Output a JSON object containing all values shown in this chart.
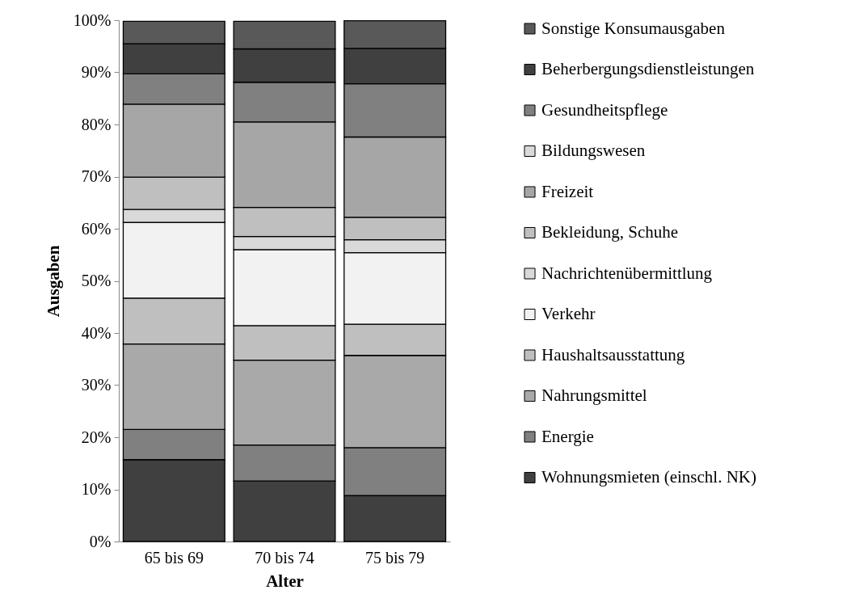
{
  "chart_data": {
    "type": "bar",
    "stacked": true,
    "xlabel": "Alter",
    "ylabel": "Ausgaben",
    "categories": [
      "65 bis 69",
      "70 bis 74",
      "75 bis 79"
    ],
    "ylim": [
      0,
      100
    ],
    "yticks": [
      {
        "value": 0,
        "label": "0%"
      },
      {
        "value": 10,
        "label": "10%"
      },
      {
        "value": 20,
        "label": "20%"
      },
      {
        "value": 30,
        "label": "30%"
      },
      {
        "value": 40,
        "label": "40%"
      },
      {
        "value": 50,
        "label": "50%"
      },
      {
        "value": 60,
        "label": "60%"
      },
      {
        "value": 70,
        "label": "70%"
      },
      {
        "value": 80,
        "label": "80%"
      },
      {
        "value": 90,
        "label": "90%"
      },
      {
        "value": 100,
        "label": "100%"
      }
    ],
    "grid": false,
    "legend": "right",
    "series": [
      {
        "name": "Wohnungsmieten (einschl. NK)",
        "color": "#404040",
        "values": [
          15.7,
          11.6,
          8.8
        ]
      },
      {
        "name": "Energie",
        "color": "#808080",
        "values": [
          5.8,
          6.9,
          9.2
        ]
      },
      {
        "name": "Nahrungsmittel",
        "color": "#a9a9a9",
        "values": [
          16.4,
          16.3,
          17.7
        ]
      },
      {
        "name": "Haushaltsausstattung",
        "color": "#bfbfbf",
        "values": [
          8.8,
          6.6,
          6.0
        ]
      },
      {
        "name": "Verkehr",
        "color": "#f2f2f2",
        "values": [
          14.5,
          14.6,
          13.7
        ]
      },
      {
        "name": "Nachrichtenübermittlung",
        "color": "#d9d9d9",
        "values": [
          2.5,
          2.5,
          2.5
        ]
      },
      {
        "name": "Bekleidung, Schuhe",
        "color": "#bfbfbf",
        "values": [
          6.2,
          5.6,
          4.3
        ]
      },
      {
        "name": "Freizeit",
        "color": "#a6a6a6",
        "values": [
          14.0,
          16.4,
          15.4
        ]
      },
      {
        "name": "Bildungswesen",
        "color": "#d9d9d9",
        "values": [
          null,
          null,
          null
        ]
      },
      {
        "name": "Gesundheitspflege",
        "color": "#808080",
        "values": [
          5.8,
          7.6,
          10.2
        ]
      },
      {
        "name": "Beherbergungsdienstleistungen",
        "color": "#404040",
        "values": [
          5.8,
          6.4,
          6.8
        ]
      },
      {
        "name": "Sonstige Konsumausgaben",
        "color": "#595959",
        "values": [
          4.3,
          5.3,
          5.3
        ]
      }
    ]
  }
}
